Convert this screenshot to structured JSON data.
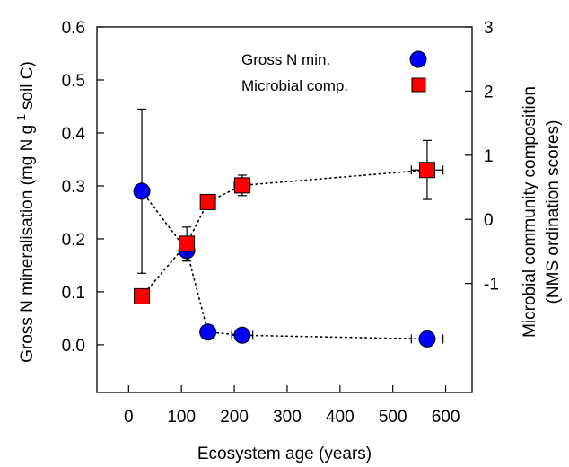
{
  "chart_data": {
    "type": "scatter",
    "xlabel": "Ecosystem age (years)",
    "ylabel_left": {
      "pre": "Gross N mineralisation (mg N g",
      "sup": "-1",
      "post": " soil C)"
    },
    "ylabel_right": [
      "Microbial community composition",
      "(NMS ordination scores)"
    ],
    "xlim": [
      -60,
      650
    ],
    "ylim_left": [
      -0.09,
      0.6
    ],
    "ylim_right": [
      -2.7,
      3
    ],
    "x_ticks": [
      "0",
      "100",
      "200",
      "300",
      "400",
      "500",
      "600"
    ],
    "y_left_ticks": [
      "0.0",
      "0.1",
      "0.2",
      "0.3",
      "0.4",
      "0.5",
      "0.6"
    ],
    "y_right_ticks": [
      "-1",
      "0",
      "1",
      "2",
      "3"
    ],
    "legend_position": "top-right",
    "series": [
      {
        "name": "Gross N min.",
        "axis": "left",
        "marker": "circle",
        "color": "#0000ff",
        "line_style": "dotted",
        "points": [
          {
            "x": 25,
            "y": 0.29,
            "y_err": 0.155,
            "x_err": 0
          },
          {
            "x": 110,
            "y": 0.178,
            "y_err": 0.02,
            "x_err": 0
          },
          {
            "x": 150,
            "y": 0.024,
            "y_err": 0.0,
            "x_err": 7
          },
          {
            "x": 215,
            "y": 0.018,
            "y_err": 0.0,
            "x_err": 20
          },
          {
            "x": 565,
            "y": 0.011,
            "y_err": 0.0,
            "x_err": 30
          }
        ]
      },
      {
        "name": "Microbial comp.",
        "axis": "right",
        "marker": "square",
        "color": "#ff0000",
        "line_style": "dotted",
        "points": [
          {
            "x": 25,
            "y": -1.2,
            "y_err": 0.0,
            "x_err": 0
          },
          {
            "x": 110,
            "y": -0.38,
            "y_err": 0.26,
            "x_err": 7
          },
          {
            "x": 150,
            "y": 0.27,
            "y_err": 0.0,
            "x_err": 7
          },
          {
            "x": 215,
            "y": 0.53,
            "y_err": 0.16,
            "x_err": 15
          },
          {
            "x": 565,
            "y": 0.77,
            "y_err": 0.46,
            "x_err": 30
          }
        ]
      }
    ]
  }
}
